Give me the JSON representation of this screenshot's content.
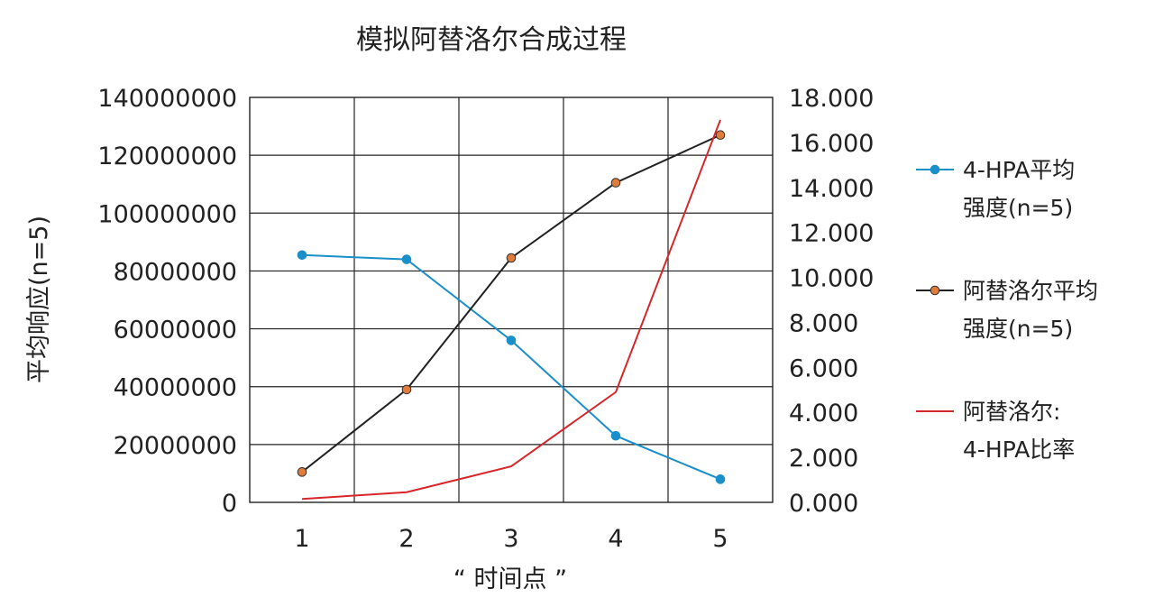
{
  "chart_data": {
    "type": "line",
    "title": "模拟阿替洛尔合成过程",
    "xlabel": "“ 时间点 ”",
    "ylabel": "平均响应(n=5)",
    "categories": [
      "1",
      "2",
      "3",
      "4",
      "5"
    ],
    "y_left": {
      "ylim": [
        0,
        140000000
      ],
      "ticks": [
        "0",
        "20000000",
        "40000000",
        "60000000",
        "80000000",
        "100000000",
        "120000000",
        "140000000"
      ]
    },
    "y_right": {
      "ylim": [
        0,
        18
      ],
      "ticks": [
        "0.000",
        "2.000",
        "4.000",
        "6.000",
        "8.000",
        "10.000",
        "12.000",
        "14.000",
        "16.000",
        "18.000"
      ]
    },
    "grid": true,
    "legend_position": "right",
    "series": [
      {
        "name": "4-HPA平均强度(n=5)",
        "legend_lines": [
          "4-HPA平均",
          "强度(n=5)"
        ],
        "axis": "left",
        "color": "#1a8fc9",
        "marker": true,
        "values": [
          85500000,
          84000000,
          56000000,
          23000000,
          8000000
        ]
      },
      {
        "name": "阿替洛尔平均强度(n=5)",
        "legend_lines": [
          "阿替洛尔平均",
          "强度(n=5)"
        ],
        "axis": "left",
        "color": "#222222",
        "marker_fill": "#e07b39",
        "marker": true,
        "values": [
          10500000,
          39000000,
          84500000,
          110500000,
          127000000
        ]
      },
      {
        "name": "阿替洛尔: 4-HPA比率",
        "legend_lines": [
          "阿替洛尔:",
          "4-HPA比率"
        ],
        "axis": "right",
        "color": "#d7262b",
        "marker": false,
        "values": [
          0.15,
          0.45,
          1.6,
          4.9,
          17.0
        ]
      }
    ]
  }
}
